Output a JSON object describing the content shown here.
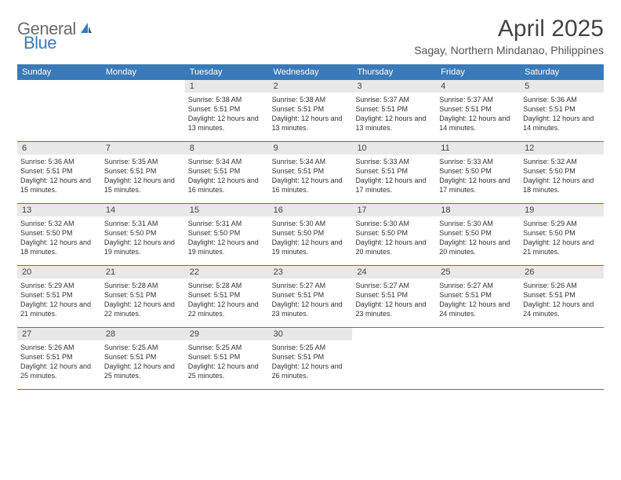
{
  "logo": {
    "general": "General",
    "blue": "Blue"
  },
  "title": "April 2025",
  "subtitle": "Sagay, Northern Mindanao, Philippines",
  "dayHeaders": [
    "Sunday",
    "Monday",
    "Tuesday",
    "Wednesday",
    "Thursday",
    "Friday",
    "Saturday"
  ],
  "colors": {
    "headerBg": "#3a7ab8",
    "dayNumberBg": "#e8e8e8",
    "borderBottom": "#3a7ab8"
  },
  "weeks": [
    [
      null,
      null,
      {
        "n": "1",
        "sr": "Sunrise: 5:38 AM",
        "ss": "Sunset: 5:51 PM",
        "dl": "Daylight: 12 hours and 13 minutes."
      },
      {
        "n": "2",
        "sr": "Sunrise: 5:38 AM",
        "ss": "Sunset: 5:51 PM",
        "dl": "Daylight: 12 hours and 13 minutes."
      },
      {
        "n": "3",
        "sr": "Sunrise: 5:37 AM",
        "ss": "Sunset: 5:51 PM",
        "dl": "Daylight: 12 hours and 13 minutes."
      },
      {
        "n": "4",
        "sr": "Sunrise: 5:37 AM",
        "ss": "Sunset: 5:51 PM",
        "dl": "Daylight: 12 hours and 14 minutes."
      },
      {
        "n": "5",
        "sr": "Sunrise: 5:36 AM",
        "ss": "Sunset: 5:51 PM",
        "dl": "Daylight: 12 hours and 14 minutes."
      }
    ],
    [
      {
        "n": "6",
        "sr": "Sunrise: 5:36 AM",
        "ss": "Sunset: 5:51 PM",
        "dl": "Daylight: 12 hours and 15 minutes."
      },
      {
        "n": "7",
        "sr": "Sunrise: 5:35 AM",
        "ss": "Sunset: 5:51 PM",
        "dl": "Daylight: 12 hours and 15 minutes."
      },
      {
        "n": "8",
        "sr": "Sunrise: 5:34 AM",
        "ss": "Sunset: 5:51 PM",
        "dl": "Daylight: 12 hours and 16 minutes."
      },
      {
        "n": "9",
        "sr": "Sunrise: 5:34 AM",
        "ss": "Sunset: 5:51 PM",
        "dl": "Daylight: 12 hours and 16 minutes."
      },
      {
        "n": "10",
        "sr": "Sunrise: 5:33 AM",
        "ss": "Sunset: 5:51 PM",
        "dl": "Daylight: 12 hours and 17 minutes."
      },
      {
        "n": "11",
        "sr": "Sunrise: 5:33 AM",
        "ss": "Sunset: 5:50 PM",
        "dl": "Daylight: 12 hours and 17 minutes."
      },
      {
        "n": "12",
        "sr": "Sunrise: 5:32 AM",
        "ss": "Sunset: 5:50 PM",
        "dl": "Daylight: 12 hours and 18 minutes."
      }
    ],
    [
      {
        "n": "13",
        "sr": "Sunrise: 5:32 AM",
        "ss": "Sunset: 5:50 PM",
        "dl": "Daylight: 12 hours and 18 minutes."
      },
      {
        "n": "14",
        "sr": "Sunrise: 5:31 AM",
        "ss": "Sunset: 5:50 PM",
        "dl": "Daylight: 12 hours and 19 minutes."
      },
      {
        "n": "15",
        "sr": "Sunrise: 5:31 AM",
        "ss": "Sunset: 5:50 PM",
        "dl": "Daylight: 12 hours and 19 minutes."
      },
      {
        "n": "16",
        "sr": "Sunrise: 5:30 AM",
        "ss": "Sunset: 5:50 PM",
        "dl": "Daylight: 12 hours and 19 minutes."
      },
      {
        "n": "17",
        "sr": "Sunrise: 5:30 AM",
        "ss": "Sunset: 5:50 PM",
        "dl": "Daylight: 12 hours and 20 minutes."
      },
      {
        "n": "18",
        "sr": "Sunrise: 5:30 AM",
        "ss": "Sunset: 5:50 PM",
        "dl": "Daylight: 12 hours and 20 minutes."
      },
      {
        "n": "19",
        "sr": "Sunrise: 5:29 AM",
        "ss": "Sunset: 5:50 PM",
        "dl": "Daylight: 12 hours and 21 minutes."
      }
    ],
    [
      {
        "n": "20",
        "sr": "Sunrise: 5:29 AM",
        "ss": "Sunset: 5:51 PM",
        "dl": "Daylight: 12 hours and 21 minutes."
      },
      {
        "n": "21",
        "sr": "Sunrise: 5:28 AM",
        "ss": "Sunset: 5:51 PM",
        "dl": "Daylight: 12 hours and 22 minutes."
      },
      {
        "n": "22",
        "sr": "Sunrise: 5:28 AM",
        "ss": "Sunset: 5:51 PM",
        "dl": "Daylight: 12 hours and 22 minutes."
      },
      {
        "n": "23",
        "sr": "Sunrise: 5:27 AM",
        "ss": "Sunset: 5:51 PM",
        "dl": "Daylight: 12 hours and 23 minutes."
      },
      {
        "n": "24",
        "sr": "Sunrise: 5:27 AM",
        "ss": "Sunset: 5:51 PM",
        "dl": "Daylight: 12 hours and 23 minutes."
      },
      {
        "n": "25",
        "sr": "Sunrise: 5:27 AM",
        "ss": "Sunset: 5:51 PM",
        "dl": "Daylight: 12 hours and 24 minutes."
      },
      {
        "n": "26",
        "sr": "Sunrise: 5:26 AM",
        "ss": "Sunset: 5:51 PM",
        "dl": "Daylight: 12 hours and 24 minutes."
      }
    ],
    [
      {
        "n": "27",
        "sr": "Sunrise: 5:26 AM",
        "ss": "Sunset: 5:51 PM",
        "dl": "Daylight: 12 hours and 25 minutes."
      },
      {
        "n": "28",
        "sr": "Sunrise: 5:25 AM",
        "ss": "Sunset: 5:51 PM",
        "dl": "Daylight: 12 hours and 25 minutes."
      },
      {
        "n": "29",
        "sr": "Sunrise: 5:25 AM",
        "ss": "Sunset: 5:51 PM",
        "dl": "Daylight: 12 hours and 25 minutes."
      },
      {
        "n": "30",
        "sr": "Sunrise: 5:25 AM",
        "ss": "Sunset: 5:51 PM",
        "dl": "Daylight: 12 hours and 26 minutes."
      },
      null,
      null,
      null
    ]
  ]
}
